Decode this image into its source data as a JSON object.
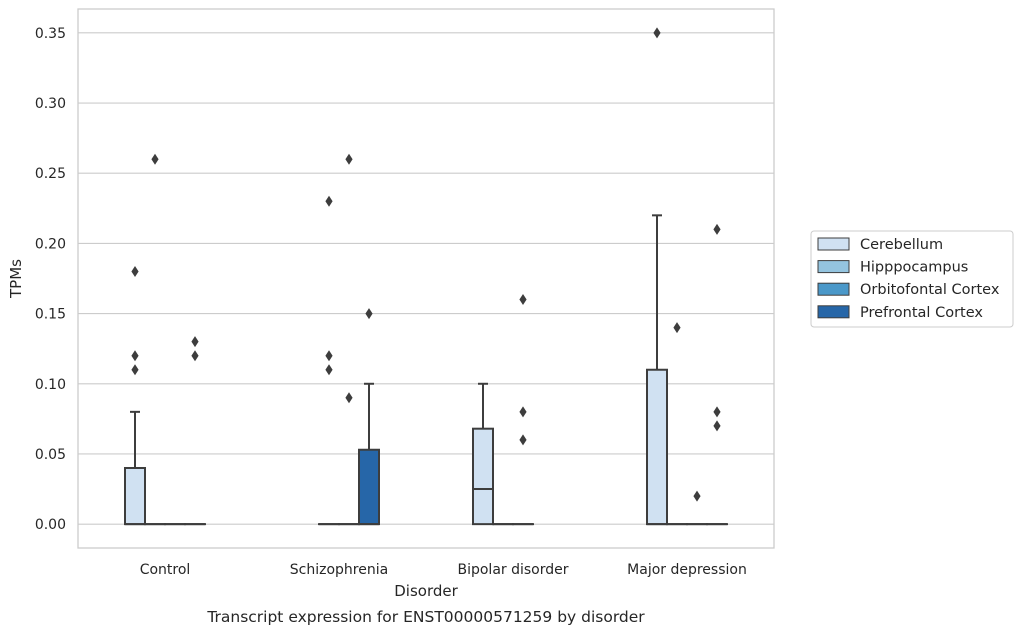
{
  "chart_data": {
    "type": "boxplot",
    "title": "",
    "xlabel": "Disorder",
    "ylabel": "TPMs",
    "caption": "Transcript expression for ENST00000571259 by disorder",
    "categories": [
      "Control",
      "Schizophrenia",
      "Bipolar disorder",
      "Major depression"
    ],
    "ylim": [
      -0.017,
      0.367
    ],
    "yticks": [
      0.0,
      0.05,
      0.1,
      0.15,
      0.2,
      0.25,
      0.3,
      0.35
    ],
    "ytick_labels": [
      "0.00",
      "0.05",
      "0.10",
      "0.15",
      "0.20",
      "0.25",
      "0.30",
      "0.35"
    ],
    "grid": "horizontal",
    "legend_position": "right",
    "series": [
      {
        "name": "Cerebellum",
        "color": "#d0e1f2",
        "boxes": [
          {
            "q1": 0.0,
            "median": 0.0,
            "q3": 0.04,
            "whisker_low": 0.0,
            "whisker_high": 0.08,
            "outliers": [
              0.11,
              0.12,
              0.18
            ]
          },
          null,
          {
            "q1": 0.0,
            "median": 0.025,
            "q3": 0.068,
            "whisker_low": 0.0,
            "whisker_high": 0.1,
            "outliers": []
          },
          {
            "q1": 0.0,
            "median": 0.0,
            "q3": 0.11,
            "whisker_low": 0.0,
            "whisker_high": 0.22,
            "outliers": [
              0.35
            ]
          }
        ]
      },
      {
        "name": "Hipppocampus",
        "color": "#94c4df",
        "boxes": [
          {
            "q1": 0.0,
            "median": 0.0,
            "q3": 0.0,
            "whisker_low": 0.0,
            "whisker_high": 0.0,
            "outliers": [
              0.26
            ]
          },
          {
            "q1": 0.0,
            "median": 0.0,
            "q3": 0.0,
            "whisker_low": 0.0,
            "whisker_high": 0.0,
            "outliers": [
              0.11,
              0.12,
              0.23
            ]
          },
          {
            "q1": 0.0,
            "median": 0.0,
            "q3": 0.0,
            "whisker_low": 0.0,
            "whisker_high": 0.0,
            "outliers": []
          },
          {
            "q1": 0.0,
            "median": 0.0,
            "q3": 0.0,
            "whisker_low": 0.0,
            "whisker_high": 0.0,
            "outliers": [
              0.14
            ]
          }
        ]
      },
      {
        "name": "Orbitofontal Cortex",
        "color": "#4a98c9",
        "boxes": [
          {
            "q1": 0.0,
            "median": 0.0,
            "q3": 0.0,
            "whisker_low": 0.0,
            "whisker_high": 0.0,
            "outliers": []
          },
          {
            "q1": 0.0,
            "median": 0.0,
            "q3": 0.0,
            "whisker_low": 0.0,
            "whisker_high": 0.0,
            "outliers": [
              0.09,
              0.26
            ]
          },
          {
            "q1": 0.0,
            "median": 0.0,
            "q3": 0.0,
            "whisker_low": 0.0,
            "whisker_high": 0.0,
            "outliers": [
              0.06,
              0.08,
              0.16
            ]
          },
          {
            "q1": 0.0,
            "median": 0.0,
            "q3": 0.0,
            "whisker_low": 0.0,
            "whisker_high": 0.0,
            "outliers": [
              0.02
            ]
          }
        ]
      },
      {
        "name": "Prefrontal Cortex",
        "color": "#2666a8",
        "boxes": [
          {
            "q1": 0.0,
            "median": 0.0,
            "q3": 0.0,
            "whisker_low": 0.0,
            "whisker_high": 0.0,
            "outliers": [
              0.12,
              0.13
            ]
          },
          {
            "q1": 0.0,
            "median": 0.0,
            "q3": 0.053,
            "whisker_low": 0.0,
            "whisker_high": 0.1,
            "outliers": [
              0.15
            ]
          },
          null,
          {
            "q1": 0.0,
            "median": 0.0,
            "q3": 0.0,
            "whisker_low": 0.0,
            "whisker_high": 0.0,
            "outliers": [
              0.07,
              0.08,
              0.21
            ]
          }
        ]
      }
    ]
  }
}
